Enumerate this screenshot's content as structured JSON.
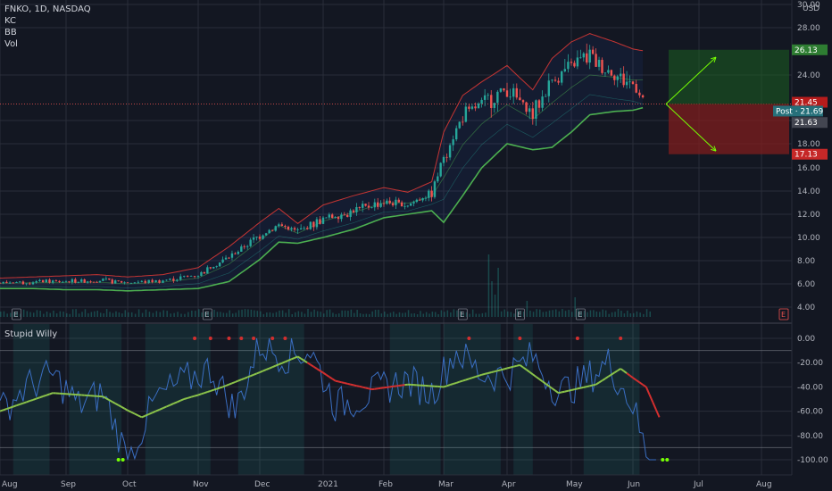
{
  "legend": {
    "symbol_line": "FNKO, 1D, NASDAQ",
    "indicators": [
      "KC",
      "BB",
      "Vol"
    ],
    "currency": "USD"
  },
  "oscillator": {
    "name": "Stupid Willy"
  },
  "colors": {
    "background": "#131722",
    "grid": "#2a2e39",
    "up": "#26a69a",
    "down": "#ef5350",
    "kc_band": "#e53935",
    "bb_band": "#4caf50",
    "osc_line": "#3a6ec2",
    "osc_signal_green": "#8bc34a",
    "osc_signal_red": "#d32f2f",
    "profit_zone": "#1b5e20",
    "loss_zone": "#7f1d1d"
  },
  "price_badges": [
    {
      "text": "26.13",
      "value": 26.13,
      "color": "#2e7d32"
    },
    {
      "text": "21.45",
      "value": 21.45,
      "color": "#b71c1c"
    },
    {
      "text": "Post · 21.69",
      "value": 21.69,
      "color": "#26707a"
    },
    {
      "text": "21.63",
      "value": 21.63,
      "color": "#434651"
    },
    {
      "text": "17.13",
      "value": 17.13,
      "color": "#c62828"
    }
  ],
  "earnings_markers": [
    "E",
    "E",
    "E",
    "E",
    "E",
    "E"
  ],
  "chart_data": [
    {
      "type": "candlestick",
      "title": "FNKO, 1D, NASDAQ",
      "y_ticks": [
        "4.00",
        "6.00",
        "8.00",
        "10.00",
        "12.00",
        "14.00",
        "16.00",
        "18.00",
        "20.00",
        "24.00",
        "28.00",
        "30.00"
      ],
      "ylim": [
        3.5,
        30
      ],
      "x_ticks": [
        "Aug",
        "Sep",
        "Oct",
        "Nov",
        "Dec",
        "2021",
        "Feb",
        "Mar",
        "Apr",
        "May",
        "Jun",
        "Jul",
        "Aug"
      ],
      "close_path": {
        "months": [
          0,
          0.5,
          1,
          1.5,
          2,
          2.5,
          3,
          3.5,
          4,
          4.3,
          4.6,
          5,
          5.5,
          6,
          6.4,
          6.8,
          7,
          7.3,
          7.6,
          8,
          8.4,
          8.7,
          9,
          9.3,
          9.7,
          10,
          10.2
        ],
        "values": [
          6.1,
          6.2,
          6.2,
          6.3,
          6.1,
          6.3,
          6.8,
          8.3,
          10.2,
          11.1,
          10.5,
          11.6,
          12.3,
          13.1,
          12.8,
          13.9,
          17.0,
          20.4,
          21.5,
          22.8,
          20.5,
          23.6,
          24.8,
          25.6,
          24.0,
          23.2,
          21.63
        ]
      },
      "bands": {
        "kc_upper": [
          6.5,
          6.6,
          6.7,
          6.8,
          6.6,
          6.8,
          7.4,
          9.2,
          11.3,
          12.5,
          11.2,
          12.8,
          13.6,
          14.3,
          13.9,
          14.8,
          19.0,
          22.2,
          23.4,
          24.8,
          22.7,
          25.4,
          26.8,
          27.5,
          26.8,
          26.2,
          26.0
        ],
        "bb_lower": [
          5.6,
          5.6,
          5.5,
          5.5,
          5.4,
          5.5,
          5.6,
          6.2,
          8.1,
          9.6,
          9.5,
          10.0,
          10.7,
          11.7,
          12.0,
          12.3,
          11.3,
          13.6,
          16.0,
          18.0,
          17.5,
          17.7,
          19.0,
          20.5,
          20.8,
          20.9,
          21.2
        ]
      },
      "trade_setup": {
        "entry": 21.45,
        "target": 26.13,
        "stop": 17.13
      }
    },
    {
      "type": "line",
      "title": "Stupid Willy",
      "y_ticks": [
        "0.00",
        "-20.00",
        "-40.00",
        "-60.00",
        "-80.00",
        "-100.00"
      ],
      "ylim": [
        -105,
        5
      ],
      "series": [
        {
          "values_months": [
            0,
            0.4,
            0.8,
            1.2,
            1.6,
            2.0,
            2.4,
            2.8,
            3.2,
            3.6,
            4.0,
            4.4,
            4.8,
            5.2,
            5.6,
            6.0,
            6.4,
            6.8,
            7.2,
            7.6,
            8.0,
            8.4,
            8.8,
            9.2,
            9.6,
            10.0,
            10.2,
            10.4
          ],
          "values": [
            -60,
            -40,
            -30,
            -55,
            -45,
            -100,
            -50,
            -35,
            -25,
            -60,
            -5,
            -15,
            -10,
            -55,
            -50,
            -40,
            -35,
            -45,
            -10,
            -30,
            -30,
            -15,
            -45,
            -35,
            -20,
            -55,
            -95,
            -98
          ]
        },
        {
          "values_months": [
            0,
            0.8,
            1.6,
            2.2,
            2.8,
            3.4,
            4.0,
            4.6,
            5.2,
            5.8,
            6.4,
            7.0,
            7.6,
            8.2,
            8.8,
            9.4,
            9.8,
            10.2,
            10.4
          ],
          "values": [
            -60,
            -45,
            -48,
            -65,
            -50,
            -40,
            -28,
            -15,
            -35,
            -42,
            -38,
            -40,
            -30,
            -22,
            -45,
            -38,
            -25,
            -40,
            -65
          ]
        }
      ],
      "extreme_markers": {
        "top_months": [
          2.95,
          3.2,
          3.5,
          3.7,
          3.9,
          4.2,
          4.4,
          7.4,
          8.2,
          9.1,
          9.8
        ],
        "bottom_months": [
          1.85,
          10.45
        ]
      }
    }
  ]
}
